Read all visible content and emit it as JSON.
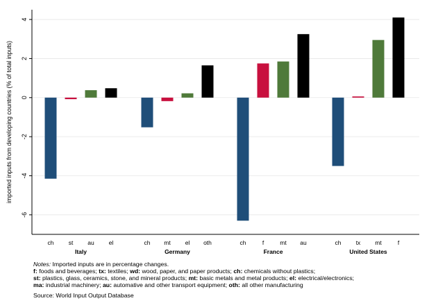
{
  "chart_data": {
    "type": "bar",
    "ylabel": "imported inputs from developing countries (% of total inputs)",
    "ylim": [
      -7,
      4.5
    ],
    "yticks": [
      -6,
      -4,
      -2,
      0,
      2,
      4
    ],
    "ytick_labels": [
      "-6",
      "-4",
      "-2",
      "0",
      "2",
      "4"
    ],
    "grid": true,
    "groups": [
      {
        "name": "Italy",
        "bars": [
          {
            "label": "ch",
            "value": -4.15,
            "color": "#1f4e79"
          },
          {
            "label": "st",
            "value": -0.08,
            "color": "#c8103e"
          },
          {
            "label": "au",
            "value": 0.38,
            "color": "#4f7a3a"
          },
          {
            "label": "el",
            "value": 0.48,
            "color": "#000000"
          }
        ]
      },
      {
        "name": "Germany",
        "bars": [
          {
            "label": "ch",
            "value": -1.52,
            "color": "#1f4e79"
          },
          {
            "label": "mt",
            "value": -0.18,
            "color": "#c8103e"
          },
          {
            "label": "el",
            "value": 0.22,
            "color": "#4f7a3a"
          },
          {
            "label": "oth",
            "value": 1.65,
            "color": "#000000"
          }
        ]
      },
      {
        "name": "France",
        "bars": [
          {
            "label": "ch",
            "value": -6.3,
            "color": "#1f4e79"
          },
          {
            "label": "f",
            "value": 1.75,
            "color": "#c8103e"
          },
          {
            "label": "mt",
            "value": 1.85,
            "color": "#4f7a3a"
          },
          {
            "label": "au",
            "value": 3.25,
            "color": "#000000"
          }
        ]
      },
      {
        "name": "United States",
        "bars": [
          {
            "label": "ch",
            "value": -3.5,
            "color": "#1f4e79"
          },
          {
            "label": "tx",
            "value": 0.06,
            "color": "#c8103e"
          },
          {
            "label": "mt",
            "value": 2.95,
            "color": "#4f7a3a"
          },
          {
            "label": "f",
            "value": 4.1,
            "color": "#000000"
          }
        ]
      }
    ]
  },
  "notes": {
    "notes_label": "Notes:",
    "line1_text": " Imported inputs are in percentage changes.",
    "line2": [
      {
        "code": "f:",
        "text": " foods and beverages; "
      },
      {
        "code": "tx:",
        "text": " textiles; "
      },
      {
        "code": "wd:",
        "text": " wood, paper, and paper products; "
      },
      {
        "code": "ch:",
        "text": " chemicals without plastics;"
      }
    ],
    "line3": [
      {
        "code": "st:",
        "text": " plastics, glass, ceramics, stone, and mineral products; "
      },
      {
        "code": "mt:",
        "text": " basic metals and metal products; "
      },
      {
        "code": "el:",
        "text": " electrical/electronics;"
      }
    ],
    "line4": [
      {
        "code": "ma:",
        "text": " industrial machinery; "
      },
      {
        "code": "au:",
        "text": " automative and other transport equipment; "
      },
      {
        "code": "oth:",
        "text": " all other manufacturing"
      }
    ],
    "source": "Source: World Input Output Database"
  }
}
